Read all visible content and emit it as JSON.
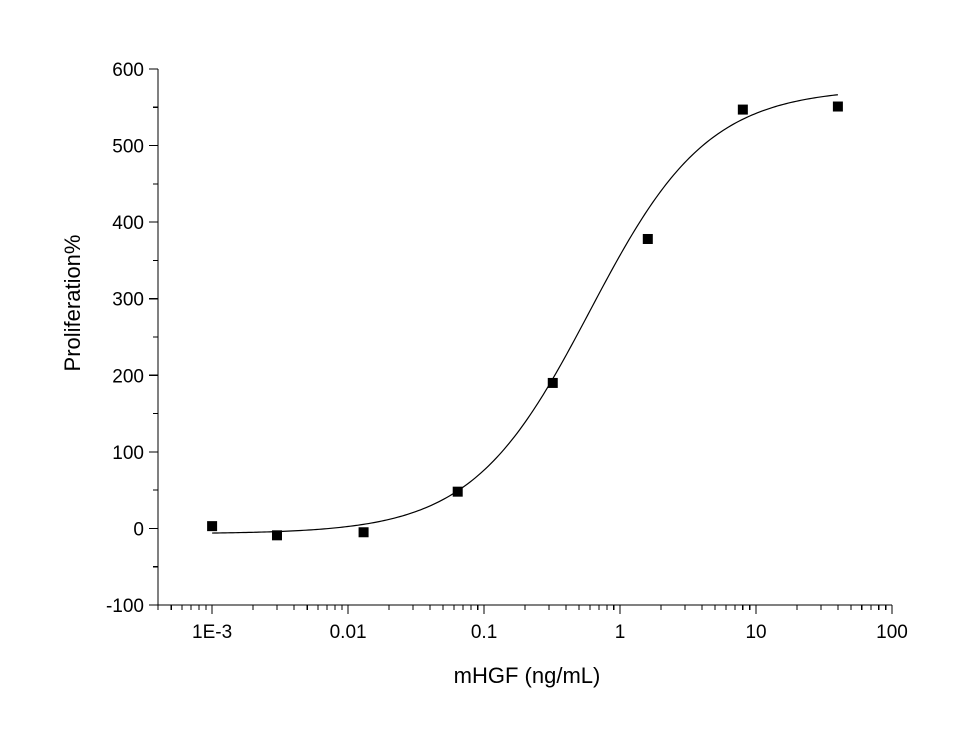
{
  "chart_data": {
    "type": "scatter",
    "title": "",
    "xlabel": "mHGF (ng/mL)",
    "ylabel": "Proliferation%",
    "x_scale": "log",
    "xlim": [
      0.0004,
      100
    ],
    "ylim": [
      -100,
      600
    ],
    "x_ticks": [
      {
        "value": 0.001,
        "label": "1E-3"
      },
      {
        "value": 0.01,
        "label": "0.01"
      },
      {
        "value": 0.1,
        "label": "0.1"
      },
      {
        "value": 1,
        "label": "1"
      },
      {
        "value": 10,
        "label": "10"
      },
      {
        "value": 100,
        "label": "100"
      }
    ],
    "y_ticks": [
      {
        "value": -100,
        "label": "-100"
      },
      {
        "value": 0,
        "label": "0"
      },
      {
        "value": 100,
        "label": "100"
      },
      {
        "value": 200,
        "label": "200"
      },
      {
        "value": 300,
        "label": "300"
      },
      {
        "value": 400,
        "label": "400"
      },
      {
        "value": 500,
        "label": "500"
      },
      {
        "value": 600,
        "label": "600"
      }
    ],
    "grid": false,
    "legend": "none",
    "series": [
      {
        "kind": "points",
        "marker": "square",
        "color": "#000000",
        "x": [
          0.001,
          0.003,
          0.013,
          0.064,
          0.32,
          1.6,
          8,
          40
        ],
        "y": [
          3,
          -9,
          -5,
          48,
          190,
          378,
          547,
          551
        ]
      },
      {
        "kind": "fit-curve",
        "color": "#000000",
        "model": "four-parameter logistic",
        "x_range": [
          0.001,
          40
        ],
        "bottom": -7,
        "top": 575,
        "ec50": 0.6,
        "hill": 1.0
      }
    ]
  }
}
